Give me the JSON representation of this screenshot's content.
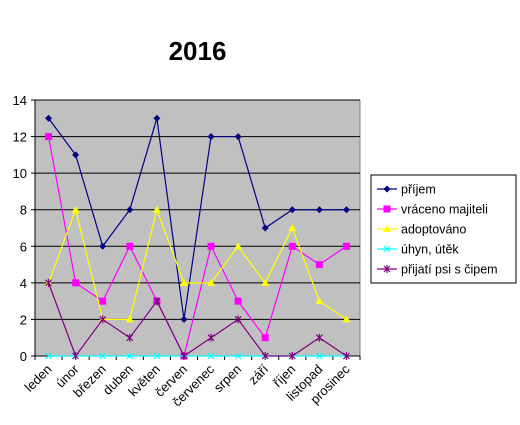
{
  "chart_data": {
    "type": "line",
    "title": "2016",
    "xlabel": "",
    "ylabel": "",
    "ylim": [
      0,
      14
    ],
    "yticks": [
      "0",
      "2",
      "4",
      "6",
      "8",
      "10",
      "12",
      "14"
    ],
    "grid": true,
    "legend_position": "right",
    "plot_background": "#c0c0c0",
    "categories": [
      "leden",
      "únor",
      "březen",
      "duben",
      "květen",
      "červen",
      "červenec",
      "srpen",
      "září",
      "říjen",
      "listopad",
      "prosinec"
    ],
    "series": [
      {
        "name": "příjem",
        "color": "#000080",
        "marker": "diamond",
        "values": [
          13,
          11,
          6,
          8,
          13,
          2,
          12,
          12,
          7,
          8,
          8,
          8
        ]
      },
      {
        "name": "vráceno majiteli",
        "color": "#ff00ff",
        "marker": "square",
        "values": [
          12,
          4,
          3,
          6,
          3,
          0,
          6,
          3,
          1,
          6,
          5,
          6
        ]
      },
      {
        "name": "adoptováno",
        "color": "#ffff00",
        "marker": "triangle",
        "values": [
          4,
          8,
          2,
          2,
          8,
          4,
          4,
          6,
          4,
          7,
          3,
          2
        ]
      },
      {
        "name": "úhyn, útěk",
        "color": "#00ffff",
        "marker": "x",
        "values": [
          0,
          0,
          0,
          0,
          0,
          0,
          0,
          0,
          0,
          0,
          0,
          0
        ]
      },
      {
        "name": "přijatí psi s čipem",
        "color": "#800080",
        "marker": "star",
        "values": [
          4,
          0,
          2,
          1,
          3,
          0,
          1,
          2,
          0,
          0,
          1,
          0
        ]
      }
    ]
  }
}
